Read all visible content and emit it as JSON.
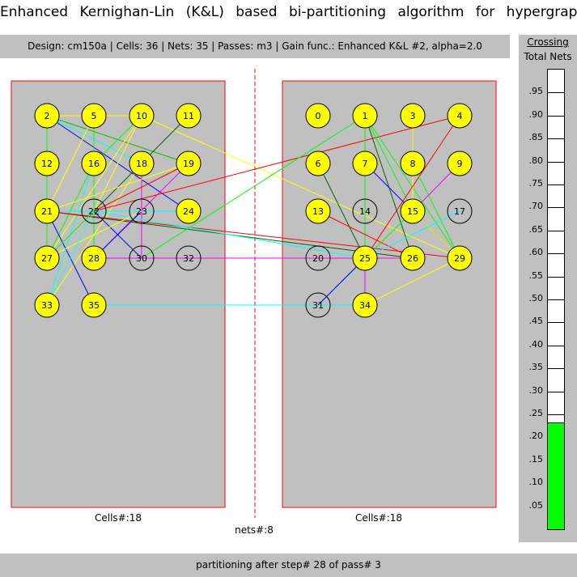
{
  "title": "Enhanced Kernighan-Lin (K&L) based bi-partitioning algorithm for hypergraphs",
  "infobar": "Design: cm150a  |  Cells: 36  |  Nets: 35  |  Passes: m3  |  Gain func.: Enhanced K&L #2, alpha=2.0",
  "left_partition_label": "Cells#:18",
  "right_partition_label": "Cells#:18",
  "nets_label": "nets#:8",
  "status": "partitioning after step# 28 of pass# 3",
  "meter": {
    "title": "Crossing",
    "subtitle": "Total Nets",
    "value": 0.23,
    "ticks": [
      ".95",
      ".90",
      ".85",
      ".80",
      ".75",
      ".70",
      ".65",
      ".60",
      ".55",
      ".50",
      ".45",
      ".40",
      ".35",
      ".30",
      ".25",
      ".20",
      ".15",
      ".10",
      ".05"
    ]
  },
  "colors": {
    "node_filled": "#ffff00",
    "panel": "#c0c0c0",
    "partition_border": "#ff0000",
    "meter_fill": "#00ff00"
  },
  "cells": [
    {
      "id": "2",
      "filled": true
    },
    {
      "id": "5",
      "filled": true
    },
    {
      "id": "10",
      "filled": true
    },
    {
      "id": "11",
      "filled": true
    },
    {
      "id": "12",
      "filled": true
    },
    {
      "id": "16",
      "filled": true
    },
    {
      "id": "18",
      "filled": true
    },
    {
      "id": "19",
      "filled": true
    },
    {
      "id": "21",
      "filled": true
    },
    {
      "id": "22",
      "filled": false
    },
    {
      "id": "23",
      "filled": false
    },
    {
      "id": "24",
      "filled": true
    },
    {
      "id": "27",
      "filled": true
    },
    {
      "id": "28",
      "filled": true
    },
    {
      "id": "30",
      "filled": false
    },
    {
      "id": "32",
      "filled": false
    },
    {
      "id": "33",
      "filled": true
    },
    {
      "id": "35",
      "filled": true
    },
    {
      "id": "0",
      "filled": true
    },
    {
      "id": "1",
      "filled": true
    },
    {
      "id": "3",
      "filled": true
    },
    {
      "id": "4",
      "filled": true
    },
    {
      "id": "6",
      "filled": true
    },
    {
      "id": "7",
      "filled": true
    },
    {
      "id": "8",
      "filled": true
    },
    {
      "id": "9",
      "filled": true
    },
    {
      "id": "13",
      "filled": true
    },
    {
      "id": "14",
      "filled": false
    },
    {
      "id": "15",
      "filled": true
    },
    {
      "id": "17",
      "filled": false
    },
    {
      "id": "20",
      "filled": false
    },
    {
      "id": "25",
      "filled": true
    },
    {
      "id": "26",
      "filled": true
    },
    {
      "id": "29",
      "filled": true
    },
    {
      "id": "31",
      "filled": false
    },
    {
      "id": "34",
      "filled": true
    }
  ],
  "nets": [
    {
      "from": "2",
      "to": "12",
      "color": "#ff0000"
    },
    {
      "from": "2",
      "to": "19",
      "color": "#00c000"
    },
    {
      "from": "2",
      "to": "24",
      "color": "#0000ff"
    },
    {
      "from": "2",
      "to": "10",
      "color": "#ffff00"
    },
    {
      "from": "2",
      "to": "18",
      "color": "#00ffff"
    },
    {
      "from": "2",
      "to": "27",
      "color": "#00ff00"
    },
    {
      "from": "5",
      "to": "21",
      "color": "#ffff00"
    },
    {
      "from": "5",
      "to": "28",
      "color": "#00ff00"
    },
    {
      "from": "10",
      "to": "33",
      "color": "#ffff00"
    },
    {
      "from": "10",
      "to": "29",
      "color": "#ffff00"
    },
    {
      "from": "10",
      "to": "16",
      "color": "#00ff00"
    },
    {
      "from": "10",
      "to": "27",
      "color": "#ffff00"
    },
    {
      "from": "11",
      "to": "22",
      "color": "#006400"
    },
    {
      "from": "16",
      "to": "33",
      "color": "#00ffff"
    },
    {
      "from": "16",
      "to": "27",
      "color": "#00ff00"
    },
    {
      "from": "18",
      "to": "33",
      "color": "#ffff00"
    },
    {
      "from": "18",
      "to": "30",
      "color": "#ff00ff"
    },
    {
      "from": "19",
      "to": "22",
      "color": "#ff0000"
    },
    {
      "from": "19",
      "to": "28",
      "color": "#ff00ff"
    },
    {
      "from": "19",
      "to": "21",
      "color": "#ffff00"
    },
    {
      "from": "21",
      "to": "35",
      "color": "#0000ff"
    },
    {
      "from": "21",
      "to": "26",
      "color": "#006400"
    },
    {
      "from": "21",
      "to": "29",
      "color": "#ff0000"
    },
    {
      "from": "21",
      "to": "24",
      "color": "#00ffff"
    },
    {
      "from": "22",
      "to": "4",
      "color": "#ff0000"
    },
    {
      "from": "22",
      "to": "25",
      "color": "#00ffff"
    },
    {
      "from": "22",
      "to": "27",
      "color": "#00ff00"
    },
    {
      "from": "22",
      "to": "30",
      "color": "#0000ff"
    },
    {
      "from": "23",
      "to": "28",
      "color": "#0000ff"
    },
    {
      "from": "23",
      "to": "27",
      "color": "#ffff00"
    },
    {
      "from": "28",
      "to": "26",
      "color": "#ff00ff"
    },
    {
      "from": "30",
      "to": "1",
      "color": "#00ff00"
    },
    {
      "from": "33",
      "to": "22",
      "color": "#00ffff"
    },
    {
      "from": "35",
      "to": "34",
      "color": "#00ffff"
    },
    {
      "from": "1",
      "to": "25",
      "color": "#00ff00"
    },
    {
      "from": "1",
      "to": "26",
      "color": "#006400"
    },
    {
      "from": "1",
      "to": "29",
      "color": "#00ff00"
    },
    {
      "from": "1",
      "to": "15",
      "color": "#00ff00"
    },
    {
      "from": "3",
      "to": "15",
      "color": "#ffff00"
    },
    {
      "from": "4",
      "to": "25",
      "color": "#ff0000"
    },
    {
      "from": "6",
      "to": "25",
      "color": "#006400"
    },
    {
      "from": "7",
      "to": "29",
      "color": "#0000ff"
    },
    {
      "from": "8",
      "to": "29",
      "color": "#00ff00"
    },
    {
      "from": "9",
      "to": "15",
      "color": "#ff00ff"
    },
    {
      "from": "13",
      "to": "26",
      "color": "#ff0000"
    },
    {
      "from": "15",
      "to": "31",
      "color": "#00ff00"
    },
    {
      "from": "15",
      "to": "29",
      "color": "#ffff00"
    },
    {
      "from": "25",
      "to": "34",
      "color": "#ff00ff"
    },
    {
      "from": "31",
      "to": "25",
      "color": "#0000ff"
    },
    {
      "from": "34",
      "to": "29",
      "color": "#ffff00"
    },
    {
      "from": "17",
      "to": "25",
      "color": "#00ffff"
    }
  ]
}
